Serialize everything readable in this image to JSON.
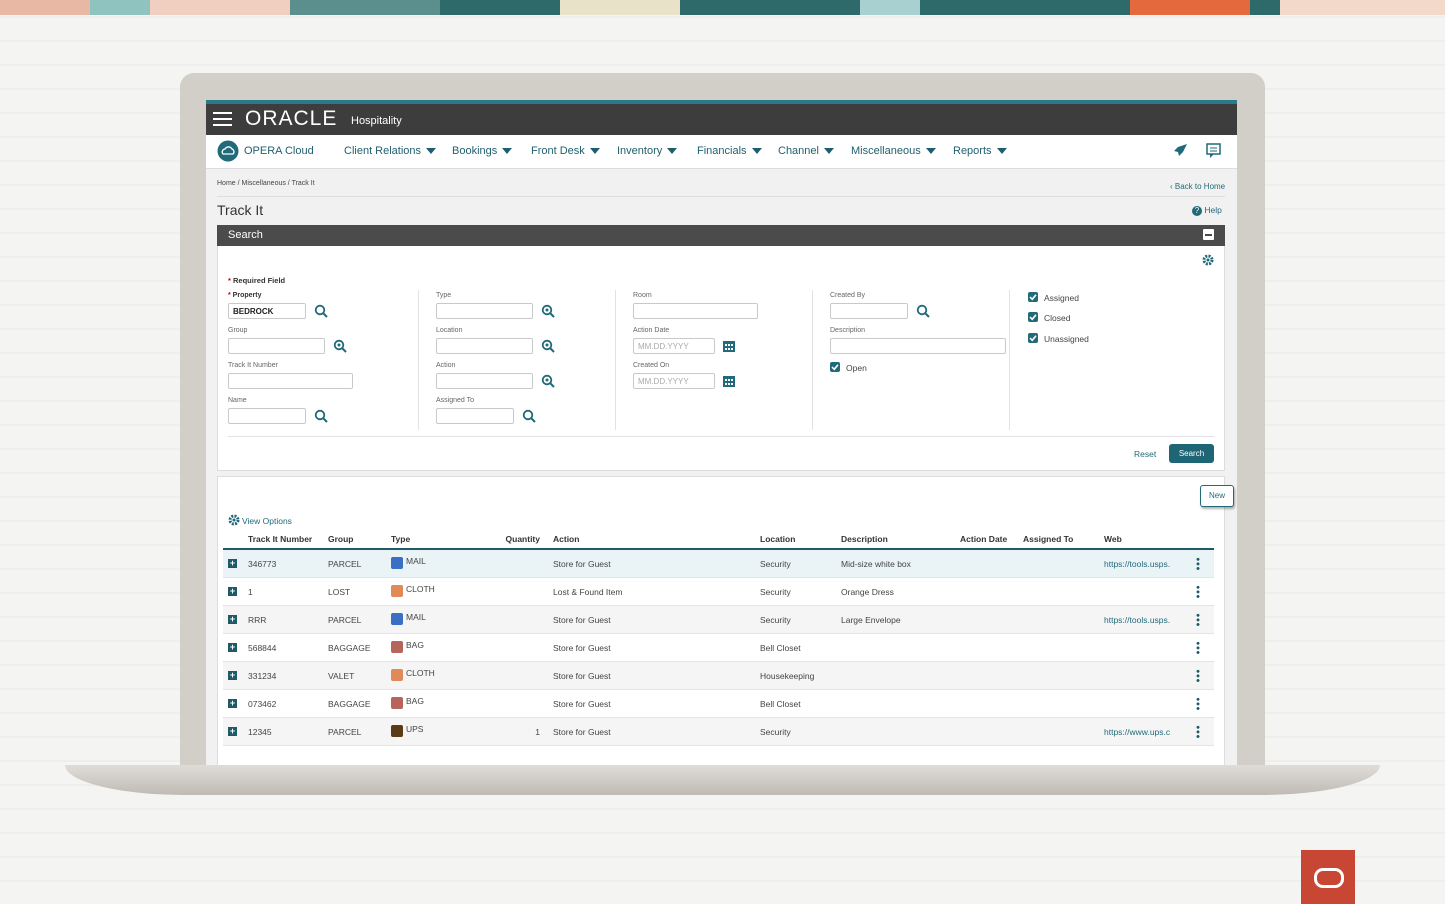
{
  "header": {
    "brand": "ORACLE",
    "product": "Hospitality"
  },
  "nav": {
    "app": "OPERA Cloud",
    "menus": [
      "Client Relations",
      "Bookings",
      "Front Desk",
      "Inventory",
      "Financials",
      "Channel",
      "Miscellaneous",
      "Reports"
    ]
  },
  "breadcrumb": "Home / Miscellaneous / Track It",
  "back_link": "Back to Home",
  "page_title": "Track It",
  "help": "Help",
  "search_panel": {
    "title": "Search",
    "required_note": "Required Field",
    "columns": [
      [
        {
          "label": "Property",
          "required": true,
          "value": "BEDROCK",
          "icon": "search"
        },
        {
          "label": "Group",
          "icon": "lookup"
        },
        {
          "label": "Track It Number"
        },
        {
          "label": "Name",
          "icon": "search"
        }
      ],
      [
        {
          "label": "Type",
          "icon": "lookup"
        },
        {
          "label": "Location",
          "icon": "lookup"
        },
        {
          "label": "Action",
          "icon": "lookup"
        },
        {
          "label": "Assigned To",
          "icon": "search"
        }
      ],
      [
        {
          "label": "Room"
        },
        {
          "label": "Action Date",
          "placeholder": "MM.DD.YYYY",
          "icon": "calendar"
        },
        {
          "label": "Created On",
          "placeholder": "MM.DD.YYYY",
          "icon": "calendar"
        }
      ],
      [
        {
          "label": "Created By",
          "icon": "search"
        },
        {
          "label": "Description"
        }
      ]
    ],
    "filters": [
      {
        "label": "Open",
        "checked": true
      },
      {
        "label": "Assigned",
        "checked": true
      },
      {
        "label": "Closed",
        "checked": true
      },
      {
        "label": "Unassigned",
        "checked": true
      }
    ],
    "reset": "Reset",
    "search_button": "Search"
  },
  "results": {
    "new_button": "New",
    "view_options": "View Options",
    "columns": [
      "Track It Number",
      "Group",
      "Type",
      "Quantity",
      "Action",
      "Location",
      "Description",
      "Action Date",
      "Assigned To",
      "Web"
    ],
    "rows": [
      [
        "346773",
        "PARCEL",
        "MAIL",
        null,
        "Store for Guest",
        "Security",
        "Mid-size white box",
        null,
        null,
        "https://tools.usps."
      ],
      [
        "1",
        "LOST",
        "CLOTH",
        null,
        "Lost & Found Item",
        "Security",
        "Orange Dress",
        null,
        null,
        null
      ],
      [
        "RRR",
        "PARCEL",
        "MAIL",
        null,
        "Store for Guest",
        "Security",
        "Large Envelope",
        null,
        null,
        "https://tools.usps."
      ],
      [
        "568844",
        "BAGGAGE",
        "BAG",
        null,
        "Store for Guest",
        "Bell Closet",
        null,
        null,
        null,
        null
      ],
      [
        "331234",
        "VALET",
        "CLOTH",
        null,
        "Store for Guest",
        "Housekeeping",
        null,
        null,
        null,
        null
      ],
      [
        "073462",
        "BAGGAGE",
        "BAG",
        null,
        "Store for Guest",
        "Bell Closet",
        null,
        null,
        null,
        null
      ],
      [
        "12345",
        "PARCEL",
        "UPS",
        1,
        "Store for Guest",
        "Security",
        null,
        null,
        null,
        "https://www.ups.c"
      ]
    ]
  }
}
